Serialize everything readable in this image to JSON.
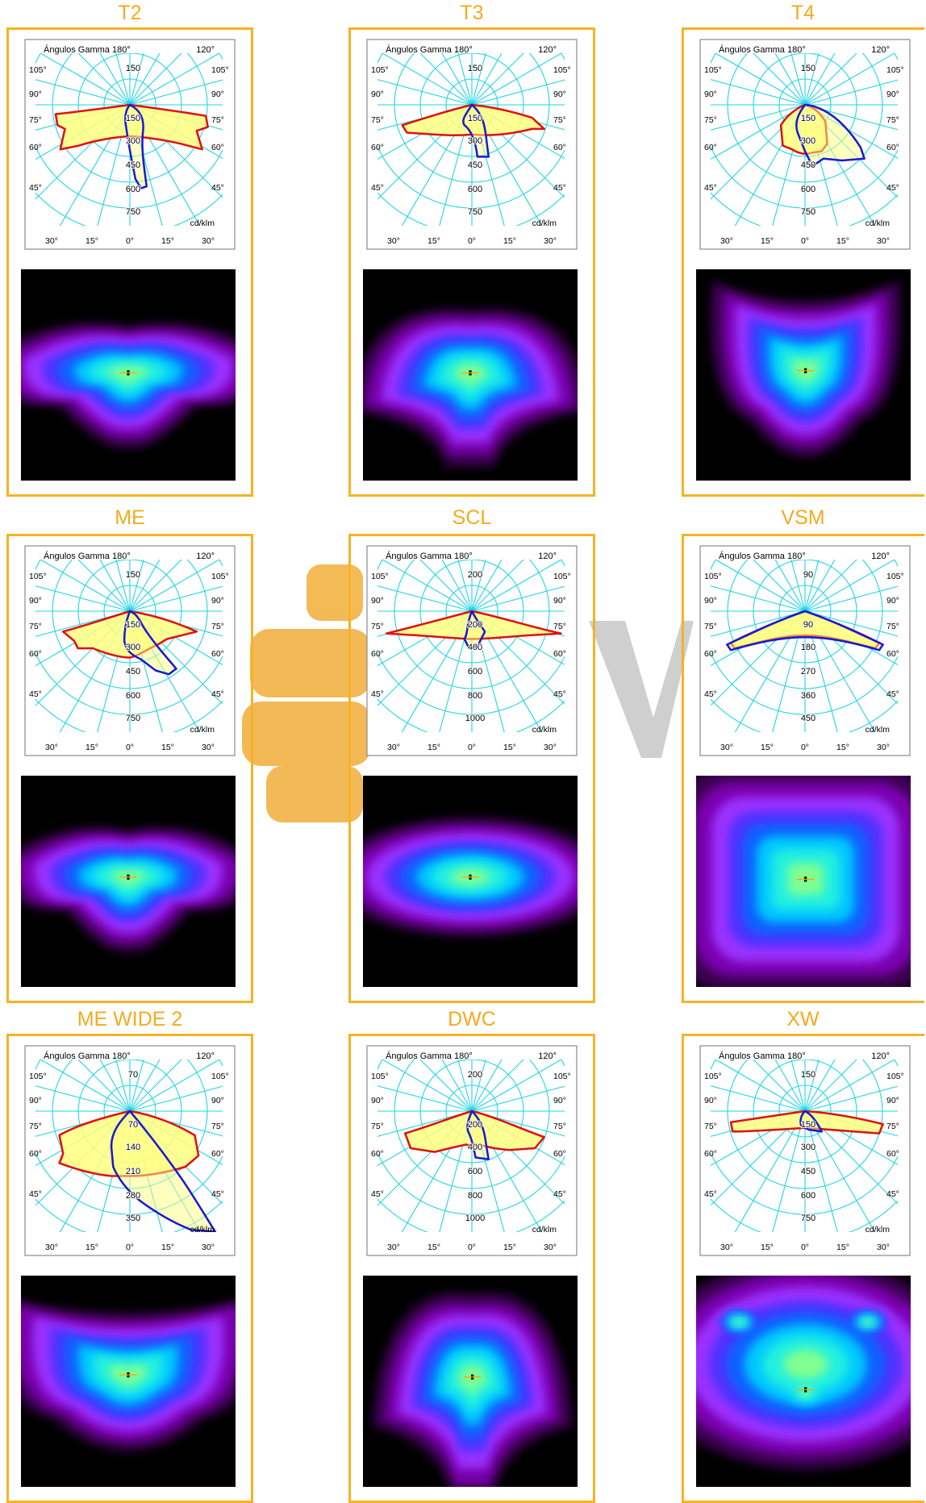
{
  "brand_color": "#F5B325",
  "title_color": "#F5AA1E",
  "panels": [
    {
      "title": "T2",
      "top_label": "Ángulos Gamma  180°",
      "top_right": "120°",
      "unit": "cd/klm",
      "radial": [
        "150",
        "150",
        "300",
        "450",
        "600",
        "750"
      ],
      "left_angles": [
        "105°",
        "90°",
        "75°",
        "60°",
        "45°"
      ],
      "right_angles": [
        "105°",
        "90°",
        "75°",
        "60°",
        "45°"
      ],
      "bottom_angles": [
        "30°",
        "15°",
        "0°",
        "15°",
        "30°"
      ],
      "variant": "t2"
    },
    {
      "title": "T3",
      "top_label": "Ángulos Gamma  180°",
      "top_right": "120°",
      "unit": "cd/klm",
      "radial": [
        "150",
        "150",
        "300",
        "450",
        "600",
        "750"
      ],
      "left_angles": [
        "105°",
        "90°",
        "75°",
        "60°",
        "45°"
      ],
      "right_angles": [
        "105°",
        "90°",
        "75°",
        "60°",
        "45°"
      ],
      "bottom_angles": [
        "30°",
        "15°",
        "0°",
        "15°",
        "30°"
      ],
      "variant": "t3"
    },
    {
      "title": "T4",
      "top_label": "Ángulos Gamma  180°",
      "top_right": "120°",
      "unit": "cd/klm",
      "radial": [
        "150",
        "150",
        "300",
        "450",
        "600",
        "750"
      ],
      "left_angles": [
        "105°",
        "90°",
        "75°",
        "60°",
        "45°"
      ],
      "right_angles": [
        "105°",
        "90°",
        "75°",
        "60°",
        "45°"
      ],
      "bottom_angles": [
        "30°",
        "15°",
        "0°",
        "15°",
        "30°"
      ],
      "variant": "t4"
    },
    {
      "title": "ME",
      "top_label": "Ángulos Gamma  180°",
      "top_right": "120°",
      "unit": "cd/klm",
      "radial": [
        "150",
        "150",
        "300",
        "450",
        "600",
        "750"
      ],
      "left_angles": [
        "105°",
        "90°",
        "75°",
        "60°",
        "45°"
      ],
      "right_angles": [
        "105°",
        "90°",
        "75°",
        "60°",
        "45°"
      ],
      "bottom_angles": [
        "30°",
        "15°",
        "0°",
        "15°",
        "30°"
      ],
      "variant": "me"
    },
    {
      "title": "SCL",
      "top_label": "Ángulos Gamma  180°",
      "top_right": "120°",
      "unit": "cd/klm",
      "radial": [
        "200",
        "200",
        "400",
        "600",
        "800",
        "1000"
      ],
      "left_angles": [
        "105°",
        "90°",
        "75°",
        "60°",
        "45°"
      ],
      "right_angles": [
        "105°",
        "90°",
        "75°",
        "60°",
        "45°"
      ],
      "bottom_angles": [
        "30°",
        "15°",
        "0°",
        "15°",
        "30°"
      ],
      "variant": "scl"
    },
    {
      "title": "VSM",
      "top_label": "Ángulos Gamma  180°",
      "top_right": "120°",
      "unit": "cd/klm",
      "radial": [
        "90",
        "90",
        "180",
        "270",
        "360",
        "450"
      ],
      "left_angles": [
        "105°",
        "90°",
        "75°",
        "60°",
        "45°"
      ],
      "right_angles": [
        "105°",
        "90°",
        "75°",
        "60°",
        "45°"
      ],
      "bottom_angles": [
        "30°",
        "15°",
        "0°",
        "15°",
        "30°"
      ],
      "variant": "vsm"
    },
    {
      "title": "ME WIDE 2",
      "top_label": "Ángulos Gamma  180°",
      "top_right": "120°",
      "unit": "cd/klm",
      "radial": [
        "70",
        "70",
        "140",
        "210",
        "280",
        "350"
      ],
      "left_angles": [
        "105°",
        "90°",
        "75°",
        "60°",
        "45°"
      ],
      "right_angles": [
        "105°",
        "90°",
        "75°",
        "60°",
        "45°"
      ],
      "bottom_angles": [
        "30°",
        "15°",
        "0°",
        "15°",
        "30°"
      ],
      "variant": "mewide"
    },
    {
      "title": "DWC",
      "top_label": "Ángulos Gamma  180°",
      "top_right": "120°",
      "unit": "cd/klm",
      "radial": [
        "200",
        "200",
        "400",
        "600",
        "800",
        "1000"
      ],
      "left_angles": [
        "105°",
        "90°",
        "75°",
        "60°",
        "45°"
      ],
      "right_angles": [
        "105°",
        "90°",
        "75°",
        "60°",
        "45°"
      ],
      "bottom_angles": [
        "30°",
        "15°",
        "0°",
        "15°",
        "30°"
      ],
      "variant": "dwc"
    },
    {
      "title": "XW",
      "top_label": "Ángulos Gamma  180°",
      "top_right": "120°",
      "unit": "cd/klm",
      "radial": [
        "150",
        "150",
        "300",
        "450",
        "600",
        "750"
      ],
      "left_angles": [
        "105°",
        "90°",
        "75°",
        "60°",
        "45°"
      ],
      "right_angles": [
        "105°",
        "90°",
        "75°",
        "60°",
        "45°"
      ],
      "bottom_angles": [
        "30°",
        "15°",
        "0°",
        "15°",
        "30°"
      ],
      "variant": "xw"
    }
  ]
}
